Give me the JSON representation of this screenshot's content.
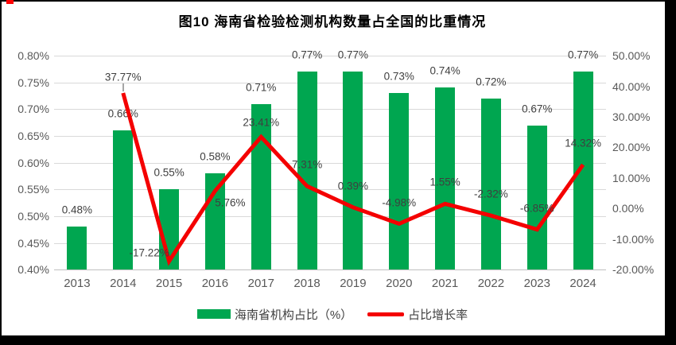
{
  "title": "图10  海南省检验检测机构数量占全国的比重情况",
  "frame": {
    "border_color": "#000000",
    "corner_marker_color": "#ff0000"
  },
  "colors": {
    "bar": "#00a650",
    "line": "#f40000",
    "grid": "#d9d9d9",
    "axis_line": "#bfbfbf",
    "tick_text": "#595959",
    "label_text": "#3f3f3f"
  },
  "chart_data": {
    "type": "bar+line combo",
    "categories": [
      "2013",
      "2014",
      "2015",
      "2016",
      "2017",
      "2018",
      "2019",
      "2020",
      "2021",
      "2022",
      "2023",
      "2024"
    ],
    "series": [
      {
        "name": "海南省机构占比（%）",
        "type": "bar",
        "axis": "left",
        "color": "#00a650",
        "values": [
          0.48,
          0.66,
          0.55,
          0.58,
          0.71,
          0.77,
          0.77,
          0.73,
          0.74,
          0.72,
          0.67,
          0.77
        ],
        "labels": [
          "0.48%",
          "0.66%",
          "0.55%",
          "0.58%",
          "0.71%",
          "0.77%",
          "0.77%",
          "0.73%",
          "0.74%",
          "0.72%",
          "0.67%",
          "0.77%"
        ]
      },
      {
        "name": "占比增长率",
        "type": "line",
        "axis": "right",
        "color": "#f40000",
        "values": [
          null,
          37.77,
          -17.22,
          5.76,
          23.41,
          7.31,
          0.39,
          -4.98,
          1.55,
          -2.32,
          -6.85,
          14.32
        ],
        "labels": [
          "",
          "37.77%",
          "-17.22%",
          "5.76%",
          "23.41%",
          "7.31%",
          "0.39%",
          "-4.98%",
          "1.55%",
          "-2.32%",
          "-6.85%",
          "14.32%"
        ]
      }
    ],
    "left_axis": {
      "min": 0.4,
      "max": 0.8,
      "step": 0.05,
      "tick_values": [
        0.8,
        0.75,
        0.7,
        0.65,
        0.6,
        0.55,
        0.5,
        0.45,
        0.4
      ],
      "tick_labels": [
        "0.80%",
        "0.75%",
        "0.70%",
        "0.65%",
        "0.60%",
        "0.55%",
        "0.50%",
        "0.45%",
        "0.40%"
      ]
    },
    "right_axis": {
      "min": -20,
      "max": 50,
      "step": 10,
      "tick_values": [
        50,
        40,
        30,
        20,
        10,
        0,
        -10,
        -20
      ],
      "tick_labels": [
        "50.00%",
        "40.00%",
        "30.00%",
        "20.00%",
        "10.00%",
        "0.00%",
        "-10.00%",
        "-20.00%"
      ]
    },
    "grid": "horizontal-only",
    "legend_position": "bottom-center",
    "line_label_offsets": {
      "default": [
        0,
        -27
      ],
      "2014": [
        0,
        -20
      ],
      "2015": [
        -25,
        -11
      ],
      "2016": [
        19,
        15
      ],
      "2017": [
        0,
        -18
      ]
    },
    "label_leader": {
      "category": "2014"
    }
  }
}
